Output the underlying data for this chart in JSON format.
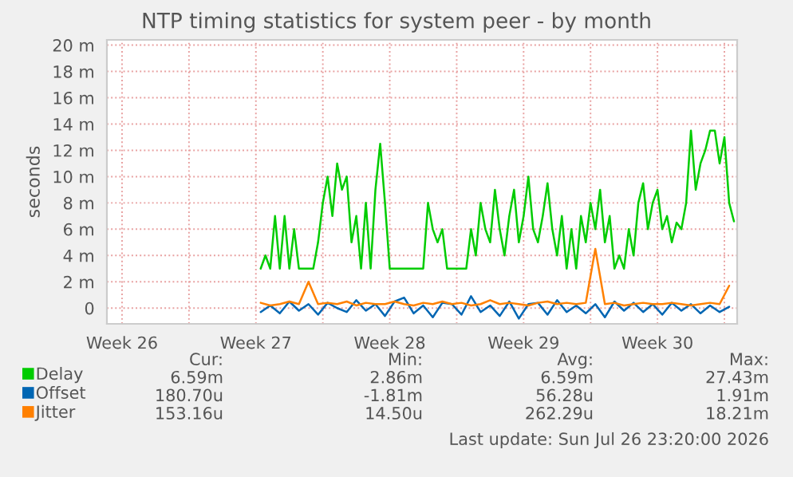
{
  "chart_data": {
    "type": "line",
    "title": "NTP timing statistics for system peer - by month",
    "ylabel": "seconds",
    "xlim": [
      "2026-06-24T17:00",
      "2026-07-27T16:00"
    ],
    "ylim": [
      -1.2,
      20.4
    ],
    "xticks": [
      {
        "value": "2026-06-25T12:00",
        "label": "Week 26"
      },
      {
        "value": "2026-06-29T00:00",
        "label": null
      },
      {
        "value": "2026-07-02T12:00",
        "label": "Week 27"
      },
      {
        "value": "2026-07-06T00:00",
        "label": null
      },
      {
        "value": "2026-07-09T12:00",
        "label": "Week 28"
      },
      {
        "value": "2026-07-13T00:00",
        "label": null
      },
      {
        "value": "2026-07-16T12:00",
        "label": "Week 29"
      },
      {
        "value": "2026-07-20T00:00",
        "label": null
      },
      {
        "value": "2026-07-23T12:00",
        "label": "Week 30"
      },
      {
        "value": "2026-07-27T00:00",
        "label": null
      }
    ],
    "yticks": [
      0,
      {
        "value": 2,
        "label": "2 m"
      },
      {
        "value": 4,
        "label": "4 m"
      },
      {
        "value": 6,
        "label": "6 m"
      },
      {
        "value": 8,
        "label": "8 m"
      },
      {
        "value": 10,
        "label": "10 m"
      },
      {
        "value": 12,
        "label": "12 m"
      },
      {
        "value": 14,
        "label": "14 m"
      },
      {
        "value": 16,
        "label": "16 m"
      },
      {
        "value": 18,
        "label": "18 m"
      },
      {
        "value": 20,
        "label": "20 m"
      }
    ],
    "grid": true,
    "legend": "bottom left",
    "series": [
      {
        "name": "Delay",
        "color": "#00cc00",
        "x": [
          "2026-07-02T18:00",
          "2026-07-03T00:00",
          "2026-07-03T06:00",
          "2026-07-03T12:00",
          "2026-07-03T18:00",
          "2026-07-04T00:00",
          "2026-07-04T06:00",
          "2026-07-04T12:00",
          "2026-07-04T18:00",
          "2026-07-05T00:00",
          "2026-07-05T06:00",
          "2026-07-05T12:00",
          "2026-07-05T18:00",
          "2026-07-06T00:00",
          "2026-07-06T06:00",
          "2026-07-06T12:00",
          "2026-07-06T18:00",
          "2026-07-07T00:00",
          "2026-07-07T06:00",
          "2026-07-07T12:00",
          "2026-07-07T18:00",
          "2026-07-08T00:00",
          "2026-07-08T06:00",
          "2026-07-08T12:00",
          "2026-07-08T18:00",
          "2026-07-09T00:00",
          "2026-07-09T06:00",
          "2026-07-09T12:00",
          "2026-07-09T18:00",
          "2026-07-10T00:00",
          "2026-07-10T06:00",
          "2026-07-10T12:00",
          "2026-07-10T18:00",
          "2026-07-11T00:00",
          "2026-07-11T06:00",
          "2026-07-11T12:00",
          "2026-07-11T18:00",
          "2026-07-12T00:00",
          "2026-07-12T06:00",
          "2026-07-12T12:00",
          "2026-07-12T18:00",
          "2026-07-13T00:00",
          "2026-07-13T06:00",
          "2026-07-13T12:00",
          "2026-07-13T18:00",
          "2026-07-14T00:00",
          "2026-07-14T06:00",
          "2026-07-14T12:00",
          "2026-07-14T18:00",
          "2026-07-15T00:00",
          "2026-07-15T06:00",
          "2026-07-15T12:00",
          "2026-07-15T18:00",
          "2026-07-16T00:00",
          "2026-07-16T06:00",
          "2026-07-16T12:00",
          "2026-07-16T18:00",
          "2026-07-17T00:00",
          "2026-07-17T06:00",
          "2026-07-17T12:00",
          "2026-07-17T18:00",
          "2026-07-18T00:00",
          "2026-07-18T06:00",
          "2026-07-18T12:00",
          "2026-07-18T18:00",
          "2026-07-19T00:00",
          "2026-07-19T06:00",
          "2026-07-19T12:00",
          "2026-07-19T18:00",
          "2026-07-20T00:00",
          "2026-07-20T06:00",
          "2026-07-20T12:00",
          "2026-07-20T18:00",
          "2026-07-21T00:00",
          "2026-07-21T06:00",
          "2026-07-21T12:00",
          "2026-07-21T18:00",
          "2026-07-22T00:00",
          "2026-07-22T06:00",
          "2026-07-22T12:00",
          "2026-07-22T18:00",
          "2026-07-23T00:00",
          "2026-07-23T06:00",
          "2026-07-23T12:00",
          "2026-07-23T18:00",
          "2026-07-24T00:00",
          "2026-07-24T06:00",
          "2026-07-24T12:00",
          "2026-07-24T18:00",
          "2026-07-25T00:00",
          "2026-07-25T06:00",
          "2026-07-25T12:00",
          "2026-07-25T18:00",
          "2026-07-26T00:00",
          "2026-07-26T06:00",
          "2026-07-26T12:00",
          "2026-07-26T18:00",
          "2026-07-27T00:00",
          "2026-07-27T06:00",
          "2026-07-27T12:00"
        ],
        "values": [
          3,
          4,
          3,
          7,
          3,
          7,
          3,
          6,
          3,
          3,
          3,
          3,
          5,
          8,
          10,
          7,
          11,
          9,
          10,
          5,
          7,
          3,
          8,
          3,
          9,
          12.5,
          8,
          3,
          3,
          3,
          3,
          3,
          3,
          3,
          3,
          8,
          6,
          5,
          6,
          3,
          3,
          3,
          3,
          3,
          6,
          4,
          8,
          6,
          5,
          9,
          6,
          4,
          7,
          9,
          5,
          7,
          10,
          6,
          5,
          7,
          9.5,
          6,
          4,
          7,
          3,
          6,
          3,
          7,
          5,
          8,
          6,
          9,
          5,
          7,
          3,
          4,
          3,
          6,
          4,
          8,
          9.5,
          6,
          8,
          9,
          6,
          7,
          5,
          6.5,
          6,
          8,
          13.5,
          9,
          11,
          12,
          13.5,
          13.5,
          11,
          13,
          8,
          6.6
        ]
      },
      {
        "name": "Offset",
        "color": "#0066b3",
        "values": [
          -0.3,
          0.2,
          -0.4,
          0.5,
          -0.2,
          0.3,
          -0.5,
          0.4,
          0,
          -0.3,
          0.6,
          -0.2,
          0.3,
          -0.6,
          0.5,
          0.8,
          -0.4,
          0.2,
          -0.7,
          0.4,
          0.3,
          -0.5,
          0.9,
          -0.3,
          0.2,
          -0.6,
          0.5,
          -0.8,
          0.3,
          0.4,
          -0.5,
          0.6,
          -0.3,
          0.2,
          -0.4,
          0.3,
          -0.7,
          0.5,
          -0.2,
          0.4,
          -0.3,
          0.3,
          -0.5,
          0.4,
          -0.2,
          0.3,
          -0.4,
          0.2,
          -0.3,
          0.1
        ]
      },
      {
        "name": "Jitter",
        "color": "#ff8000",
        "values": [
          0.4,
          0.2,
          0.3,
          0.5,
          0.3,
          2.0,
          0.3,
          0.4,
          0.3,
          0.5,
          0.2,
          0.4,
          0.3,
          0.3,
          0.5,
          0.3,
          0.2,
          0.4,
          0.3,
          0.5,
          0.3,
          0.4,
          0.2,
          0.3,
          0.6,
          0.3,
          0.4,
          0.3,
          0.2,
          0.4,
          0.5,
          0.3,
          0.4,
          0.3,
          0.4,
          4.5,
          0.3,
          0.4,
          0.2,
          0.3,
          0.4,
          0.3,
          0.3,
          0.4,
          0.3,
          0.2,
          0.3,
          0.4,
          0.3,
          1.7
        ]
      }
    ],
    "x": [
      "2026-07-02T18:00",
      "2026-07-03T06:00",
      "2026-07-03T18:00",
      "2026-07-04T06:00",
      "2026-07-04T18:00",
      "2026-07-05T06:00",
      "2026-07-05T18:00",
      "2026-07-06T06:00",
      "2026-07-06T18:00",
      "2026-07-07T06:00",
      "2026-07-07T18:00",
      "2026-07-08T06:00",
      "2026-07-08T18:00",
      "2026-07-09T06:00",
      "2026-07-09T18:00",
      "2026-07-10T06:00",
      "2026-07-10T18:00",
      "2026-07-11T06:00",
      "2026-07-11T18:00",
      "2026-07-12T06:00",
      "2026-07-12T18:00",
      "2026-07-13T06:00",
      "2026-07-13T18:00",
      "2026-07-14T06:00",
      "2026-07-14T18:00",
      "2026-07-15T06:00",
      "2026-07-15T18:00",
      "2026-07-16T06:00",
      "2026-07-16T18:00",
      "2026-07-17T06:00",
      "2026-07-17T18:00",
      "2026-07-18T06:00",
      "2026-07-18T18:00",
      "2026-07-19T06:00",
      "2026-07-19T18:00",
      "2026-07-20T06:00",
      "2026-07-20T18:00",
      "2026-07-21T06:00",
      "2026-07-21T18:00",
      "2026-07-22T06:00",
      "2026-07-22T18:00",
      "2026-07-23T06:00",
      "2026-07-23T18:00",
      "2026-07-24T06:00",
      "2026-07-24T18:00",
      "2026-07-25T06:00",
      "2026-07-25T18:00",
      "2026-07-26T06:00",
      "2026-07-26T18:00",
      "2026-07-27T06:00"
    ],
    "annotations": [
      "Cur:",
      "Min:",
      "Avg:",
      "Max:",
      "6.59m",
      "2.86m",
      "6.59m",
      "27.43m",
      "180.70u",
      "-1.81m",
      "56.28u",
      "1.91m",
      "153.16u",
      "14.50u",
      "262.29u",
      "18.21m",
      "Last update: Sun Jul 26 23:20:00 2026"
    ]
  }
}
